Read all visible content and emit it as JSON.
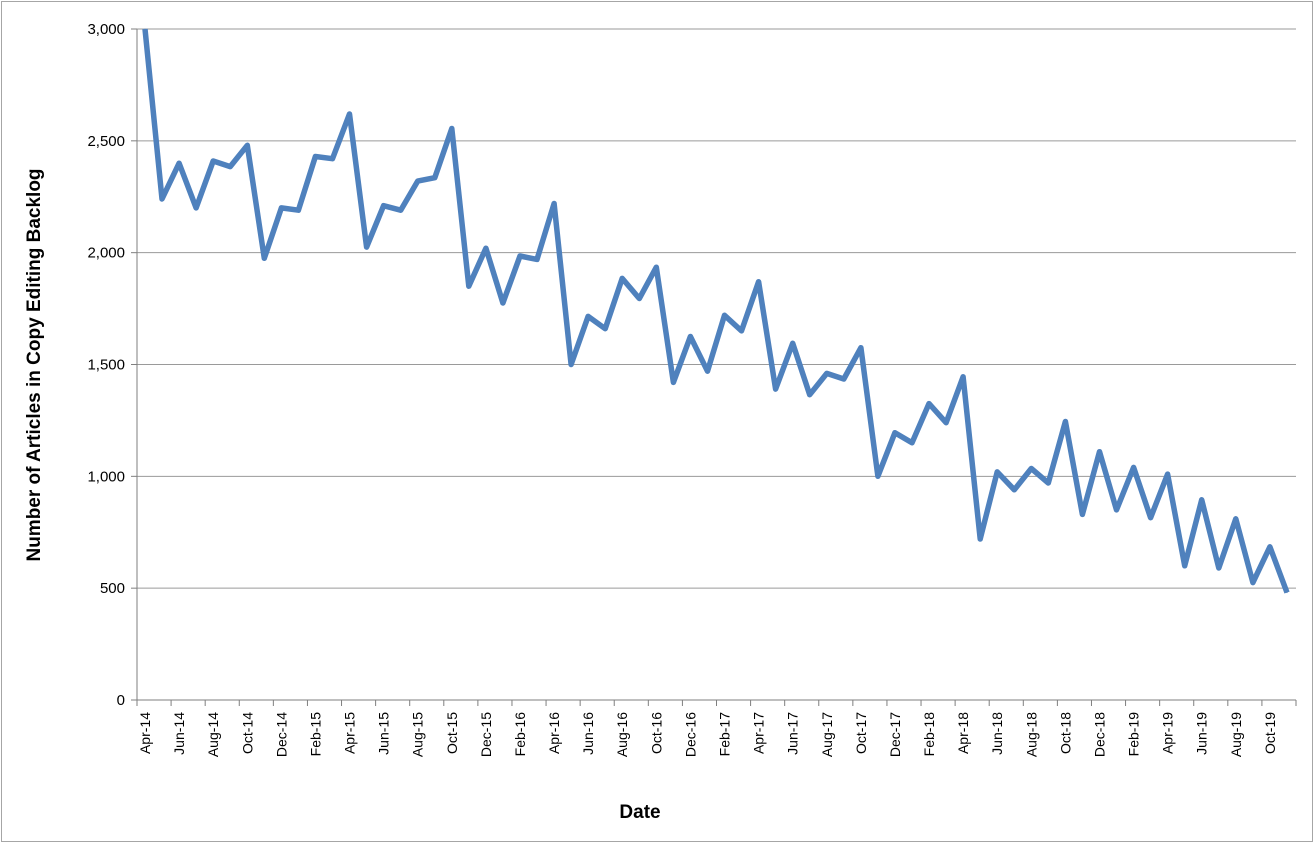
{
  "chart_data": {
    "type": "line",
    "title": "",
    "xlabel": "Date",
    "ylabel": "Number of Articles in Copy Editing Backlog",
    "ylim": [
      0,
      3000
    ],
    "yticks": [
      0,
      500,
      1000,
      1500,
      2000,
      2500,
      3000
    ],
    "ytick_labels": [
      "0",
      "500",
      "1,000",
      "1,500",
      "2,000",
      "2,500",
      "3,000"
    ],
    "grid": "horizontal",
    "legend": "none",
    "line_color": "#4f81bd",
    "xtick_labels": [
      "Apr-14",
      "Jun-14",
      "Aug-14",
      "Oct-14",
      "Dec-14",
      "Feb-15",
      "Apr-15",
      "Jun-15",
      "Aug-15",
      "Oct-15",
      "Dec-15",
      "Feb-16",
      "Apr-16",
      "Jun-16",
      "Aug-16",
      "Oct-16",
      "Dec-16",
      "Feb-17",
      "Apr-17",
      "Jun-17",
      "Aug-17",
      "Oct-17",
      "Dec-17",
      "Feb-18",
      "Apr-18",
      "Jun-18",
      "Aug-18",
      "Oct-18",
      "Dec-18",
      "Feb-19",
      "Apr-19",
      "Jun-19",
      "Aug-19",
      "Oct-19"
    ],
    "x": [
      "Apr-14",
      "May-14",
      "Jun-14",
      "Jul-14",
      "Aug-14",
      "Sep-14",
      "Oct-14",
      "Nov-14",
      "Dec-14",
      "Jan-15",
      "Feb-15",
      "Mar-15",
      "Apr-15",
      "May-15",
      "Jun-15",
      "Jul-15",
      "Aug-15",
      "Sep-15",
      "Oct-15",
      "Nov-15",
      "Dec-15",
      "Jan-16",
      "Feb-16",
      "Mar-16",
      "Apr-16",
      "May-16",
      "Jun-16",
      "Jul-16",
      "Aug-16",
      "Sep-16",
      "Oct-16",
      "Nov-16",
      "Dec-16",
      "Jan-17",
      "Feb-17",
      "Mar-17",
      "Apr-17",
      "May-17",
      "Jun-17",
      "Jul-17",
      "Aug-17",
      "Sep-17",
      "Oct-17",
      "Nov-17",
      "Dec-17",
      "Jan-18",
      "Feb-18",
      "Mar-18",
      "Apr-18",
      "May-18",
      "Jun-18",
      "Jul-18",
      "Aug-18",
      "Sep-18",
      "Oct-18",
      "Nov-18",
      "Dec-18",
      "Jan-19",
      "Feb-19",
      "Mar-19",
      "Apr-19",
      "May-19",
      "Jun-19",
      "Jul-19",
      "Aug-19",
      "Sep-19",
      "Oct-19",
      "Nov-19"
    ],
    "series": [
      {
        "values": [
          3000,
          2240,
          2400,
          2200,
          2410,
          2385,
          2480,
          1975,
          2200,
          2190,
          2430,
          2420,
          2620,
          2025,
          2210,
          2190,
          2320,
          2335,
          2555,
          1850,
          2020,
          1775,
          1985,
          1970,
          2220,
          1500,
          1715,
          1660,
          1885,
          1795,
          1935,
          1420,
          1625,
          1470,
          1720,
          1650,
          1870,
          1390,
          1595,
          1365,
          1460,
          1435,
          1575,
          1000,
          1195,
          1150,
          1325,
          1240,
          1445,
          720,
          1020,
          940,
          1035,
          970,
          1245,
          830,
          1110,
          850,
          1040,
          815,
          1010,
          600,
          895,
          590,
          810,
          525,
          685,
          480
        ]
      }
    ]
  }
}
